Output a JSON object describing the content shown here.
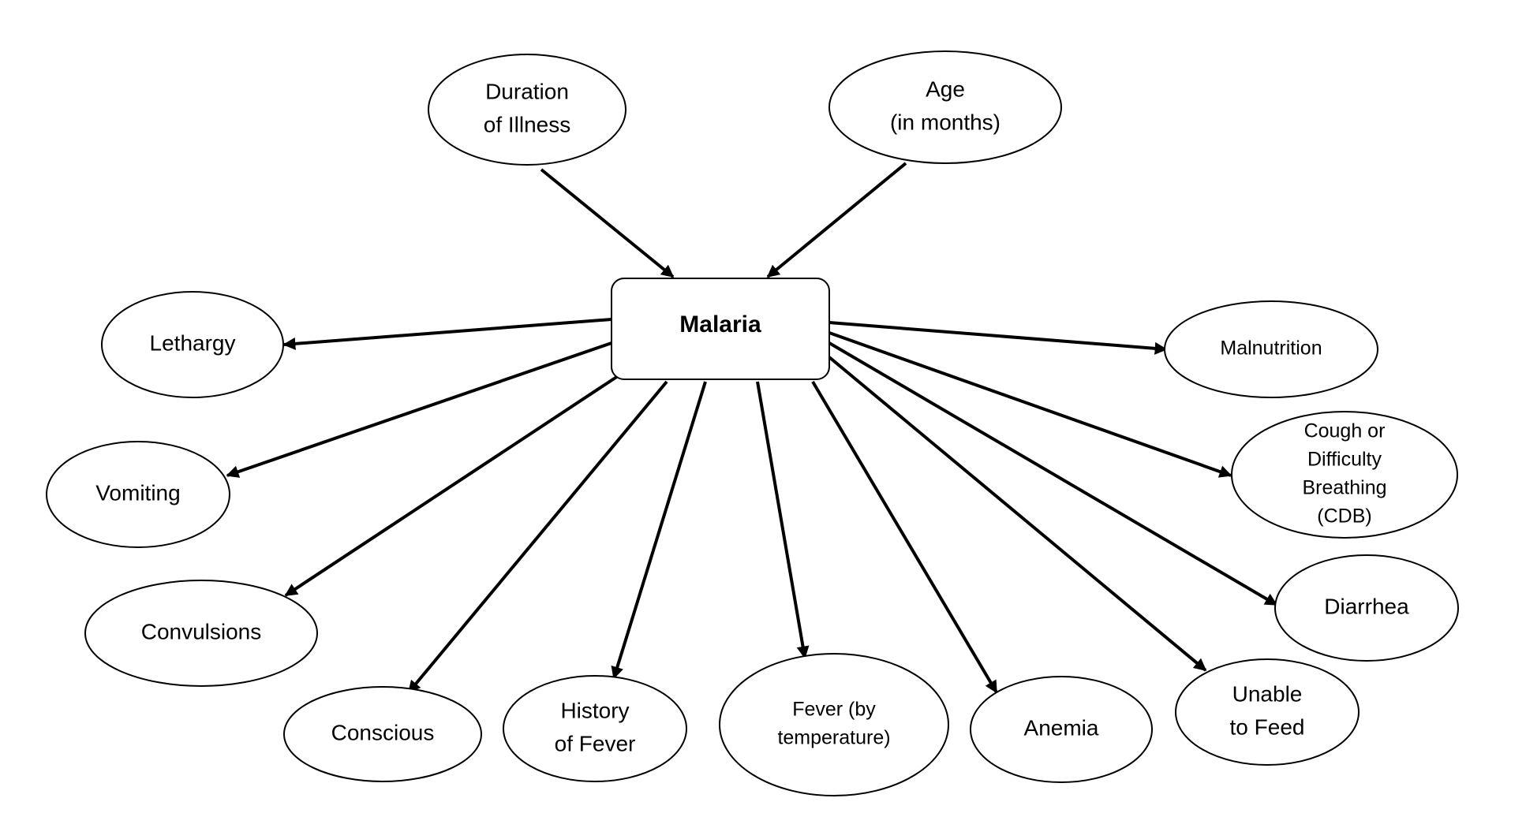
{
  "diagram": {
    "center": {
      "label": "Malaria"
    },
    "incoming": [
      {
        "id": "duration",
        "lines": [
          "Duration",
          "of Illness"
        ]
      },
      {
        "id": "age",
        "lines": [
          "Age",
          "(in months)"
        ]
      }
    ],
    "outgoing": [
      {
        "id": "lethargy",
        "lines": [
          "Lethargy"
        ]
      },
      {
        "id": "vomiting",
        "lines": [
          "Vomiting"
        ]
      },
      {
        "id": "convulsions",
        "lines": [
          "Convulsions"
        ]
      },
      {
        "id": "conscious",
        "lines": [
          "Conscious"
        ]
      },
      {
        "id": "history-fever",
        "lines": [
          "History",
          "of Fever"
        ]
      },
      {
        "id": "fever-temperature",
        "lines": [
          "Fever (by",
          "temperature)"
        ]
      },
      {
        "id": "anemia",
        "lines": [
          "Anemia"
        ]
      },
      {
        "id": "unable-to-feed",
        "lines": [
          "Unable",
          "to Feed"
        ]
      },
      {
        "id": "diarrhea",
        "lines": [
          "Diarrhea"
        ]
      },
      {
        "id": "cdb",
        "lines": [
          "Cough or",
          "Difficulty",
          "Breathing",
          "(CDB)"
        ]
      },
      {
        "id": "malnutrition",
        "lines": [
          "Malnutrition"
        ]
      }
    ],
    "colors": {
      "stroke": "#000000",
      "fill": "#ffffff",
      "text": "#000000"
    }
  }
}
